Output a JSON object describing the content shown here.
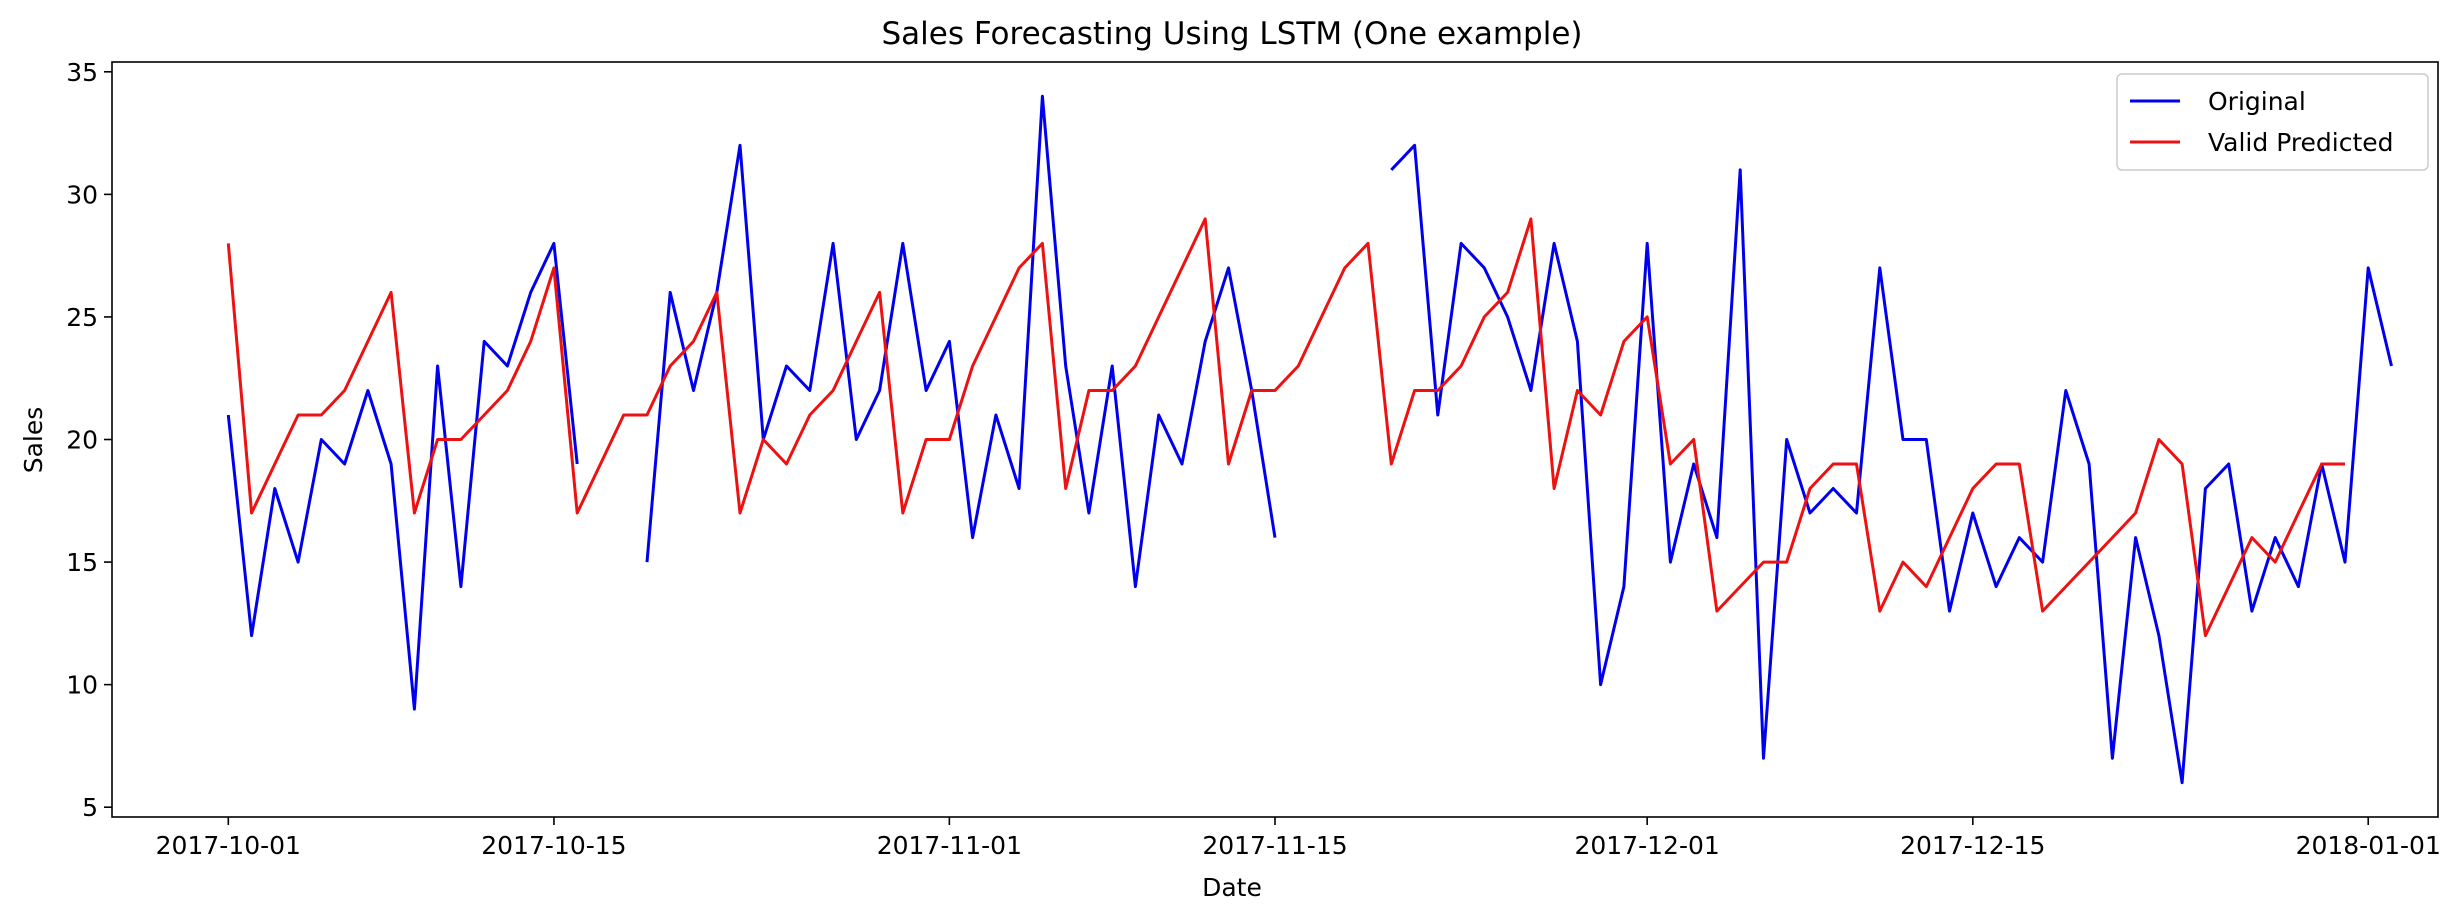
{
  "chart_data": {
    "type": "line",
    "title": "Sales Forecasting Using LSTM (One example)",
    "xlabel": "Date",
    "ylabel": "Sales",
    "xlim": [
      "2017-09-26",
      "2018-01-04"
    ],
    "ylim": [
      4.6,
      35.4
    ],
    "yticks": [
      5,
      10,
      15,
      20,
      25,
      30,
      35
    ],
    "xticks": [
      "2017-10-01",
      "2017-10-15",
      "2017-11-01",
      "2017-11-15",
      "2017-12-01",
      "2017-12-15",
      "2018-01-01"
    ],
    "grid": false,
    "legend_position": "top-right",
    "x_start": "2017-10-01",
    "series": [
      {
        "name": "Original",
        "color": "#0000ee",
        "values": [
          21,
          12,
          18,
          15,
          20,
          19,
          22,
          19,
          9,
          23,
          14,
          24,
          23,
          26,
          28,
          19,
          null,
          null,
          15,
          26,
          22,
          26,
          32,
          20,
          23,
          22,
          28,
          20,
          22,
          28,
          22,
          24,
          16,
          21,
          18,
          34,
          23,
          17,
          23,
          14,
          21,
          19,
          24,
          27,
          22,
          16,
          null,
          null,
          null,
          null,
          31,
          32,
          21,
          28,
          27,
          25,
          22,
          28,
          24,
          10,
          14,
          28,
          15,
          19,
          16,
          31,
          7,
          20,
          17,
          18,
          17,
          27,
          20,
          20,
          13,
          17,
          14,
          16,
          15,
          22,
          19,
          7,
          16,
          12,
          6,
          18,
          19,
          13,
          16,
          14,
          19,
          15,
          27,
          23
        ]
      },
      {
        "name": "Valid Predicted",
        "color": "#ee1111",
        "values": [
          28,
          17,
          19,
          21,
          21,
          22,
          24,
          26,
          17,
          20,
          20,
          21,
          22,
          24,
          27,
          17,
          19,
          21,
          21,
          23,
          24,
          26,
          17,
          20,
          19,
          21,
          22,
          24,
          26,
          17,
          20,
          20,
          23,
          25,
          27,
          28,
          18,
          22,
          22,
          23,
          25,
          27,
          29,
          19,
          22,
          22,
          23,
          25,
          27,
          28,
          19,
          22,
          22,
          23,
          25,
          26,
          29,
          18,
          22,
          21,
          24,
          25,
          19,
          20,
          13,
          14,
          15,
          15,
          18,
          19,
          19,
          13,
          15,
          14,
          16,
          18,
          19,
          19,
          13,
          14,
          15,
          16,
          17,
          20,
          19,
          12,
          14,
          16,
          15,
          17,
          19,
          19
        ]
      }
    ]
  }
}
